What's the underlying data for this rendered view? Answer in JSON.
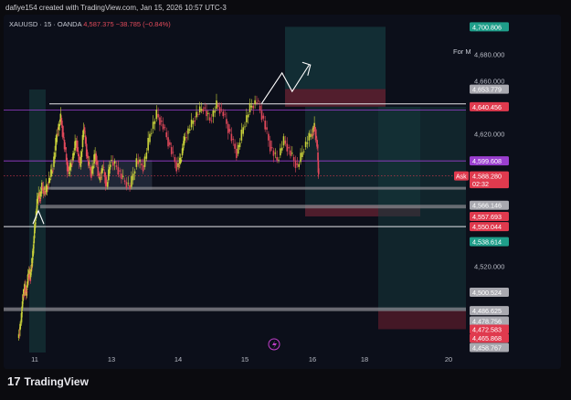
{
  "header": {
    "credit": "dafiye154 created with TradingView.com, Jan 15, 2026 10:57 UTC-3"
  },
  "symbol": {
    "name": "XAUUSD · 15 · OANDA",
    "last": "4,587.375",
    "change": "−38.785 (−0.84%)"
  },
  "form_label": "For M",
  "brand": {
    "logo": "17",
    "name": "TradingView"
  },
  "chart_data": {
    "type": "candlestick",
    "x_ticks": [
      {
        "label": "11",
        "x": 11
      },
      {
        "label": "13",
        "x": 13
      },
      {
        "label": "14",
        "x": 14
      },
      {
        "label": "15",
        "x": 15
      },
      {
        "label": "16",
        "x": 16
      },
      {
        "label": "18",
        "x": 18
      },
      {
        "label": "20",
        "x": 20
      }
    ],
    "y_ticks": [
      "4,680.000",
      "4,660.000",
      "4,620.000",
      "4,520.000"
    ],
    "y_tick_values": [
      4680,
      4660,
      4620,
      4520
    ],
    "ylim": [
      4455,
      4710
    ],
    "price_labels": [
      {
        "label": "4,700.806",
        "value": 4700.806,
        "color": "#1f9e8a"
      },
      {
        "label": "4,653.779",
        "value": 4653.779,
        "color": "#a9a9b0"
      },
      {
        "label": "4,640.456",
        "value": 4640.456,
        "color": "#e03a4e"
      },
      {
        "label": "4,599.608",
        "value": 4599.608,
        "color": "#9b3fcf"
      },
      {
        "label": "4,588.280",
        "value": 4588.28,
        "color": "#e03a4e"
      },
      {
        "label": "02:32",
        "value": 4582.4,
        "color": "#e03a4e"
      },
      {
        "label": "4,566.146",
        "value": 4566.146,
        "color": "#a9a9b0"
      },
      {
        "label": "4,557.693",
        "value": 4557.693,
        "color": "#e03a4e"
      },
      {
        "label": "4,550.044",
        "value": 4550.044,
        "color": "#e03a4e"
      },
      {
        "label": "4,538.614",
        "value": 4538.614,
        "color": "#1f9e8a"
      },
      {
        "label": "4,500.524",
        "value": 4500.524,
        "color": "#a9a9b0"
      },
      {
        "label": "4,486.625",
        "value": 4486.625,
        "color": "#a9a9b0"
      },
      {
        "label": "4,478.756",
        "value": 4478.756,
        "color": "#a9a9b0"
      },
      {
        "label": "4,472.583",
        "value": 4472.583,
        "color": "#e03a4e"
      },
      {
        "label": "4,465.868",
        "value": 4465.868,
        "color": "#e03a4e"
      },
      {
        "label": "4,458.767",
        "value": 4458.767,
        "color": "#a9a9b0"
      }
    ],
    "ask_label": "Ask",
    "price_path": [
      [
        10.4,
        4466
      ],
      [
        10.5,
        4478
      ],
      [
        10.55,
        4492
      ],
      [
        10.6,
        4500
      ],
      [
        10.65,
        4505
      ],
      [
        10.7,
        4498
      ],
      [
        10.75,
        4510
      ],
      [
        10.8,
        4515
      ],
      [
        10.85,
        4512
      ],
      [
        10.9,
        4520
      ],
      [
        10.95,
        4530
      ],
      [
        11.0,
        4545
      ],
      [
        11.05,
        4560
      ],
      [
        11.1,
        4575
      ],
      [
        11.15,
        4570
      ],
      [
        11.2,
        4580
      ],
      [
        11.3,
        4576
      ],
      [
        11.4,
        4585
      ],
      [
        11.5,
        4595
      ],
      [
        11.6,
        4620
      ],
      [
        11.7,
        4632
      ],
      [
        11.8,
        4610
      ],
      [
        11.9,
        4590
      ],
      [
        12.0,
        4600
      ],
      [
        12.1,
        4615
      ],
      [
        12.2,
        4595
      ],
      [
        12.3,
        4625
      ],
      [
        12.4,
        4600
      ],
      [
        12.5,
        4590
      ],
      [
        12.6,
        4605
      ],
      [
        12.7,
        4585
      ],
      [
        12.8,
        4595
      ],
      [
        12.9,
        4580
      ],
      [
        13.0,
        4600
      ],
      [
        13.1,
        4595
      ],
      [
        13.2,
        4585
      ],
      [
        13.3,
        4580
      ],
      [
        13.4,
        4600
      ],
      [
        13.5,
        4595
      ],
      [
        13.6,
        4620
      ],
      [
        13.7,
        4635
      ],
      [
        13.8,
        4625
      ],
      [
        13.9,
        4610
      ],
      [
        14.0,
        4595
      ],
      [
        14.05,
        4600
      ],
      [
        14.1,
        4615
      ],
      [
        14.2,
        4625
      ],
      [
        14.3,
        4635
      ],
      [
        14.4,
        4640
      ],
      [
        14.5,
        4630
      ],
      [
        14.6,
        4642
      ],
      [
        14.7,
        4635
      ],
      [
        14.8,
        4620
      ],
      [
        14.9,
        4605
      ],
      [
        15.0,
        4625
      ],
      [
        15.1,
        4640
      ],
      [
        15.2,
        4645
      ],
      [
        15.3,
        4630
      ],
      [
        15.4,
        4610
      ],
      [
        15.5,
        4600
      ],
      [
        15.6,
        4615
      ],
      [
        15.7,
        4605
      ],
      [
        15.8,
        4595
      ],
      [
        15.9,
        4610
      ],
      [
        16.0,
        4620
      ],
      [
        16.1,
        4625
      ],
      [
        16.2,
        4612
      ],
      [
        16.25,
        4588
      ]
    ]
  }
}
